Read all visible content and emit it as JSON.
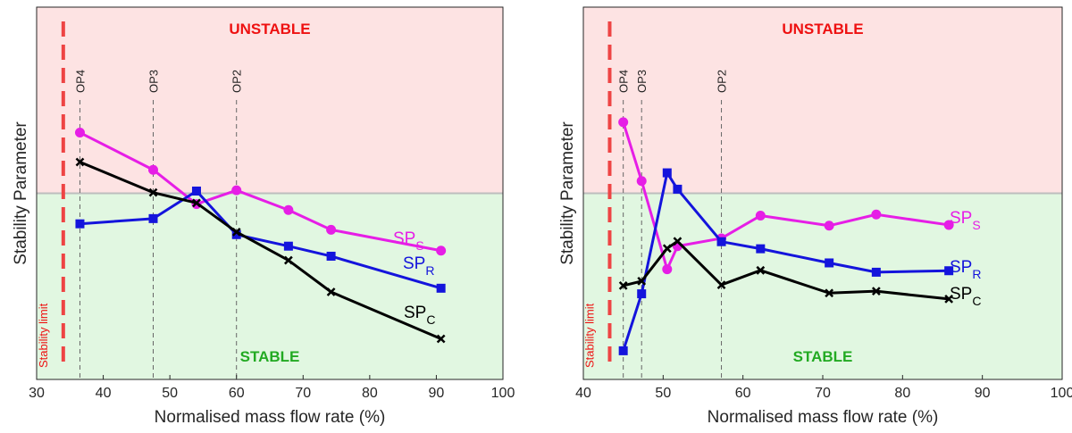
{
  "chart_data": [
    {
      "type": "line",
      "xlabel": "Normalised mass flow rate (%)",
      "ylabel": "Stability Parameter",
      "xlim": [
        30,
        100
      ],
      "ylim": [
        0,
        1
      ],
      "xticks": [
        30,
        40,
        50,
        60,
        70,
        80,
        90,
        100
      ],
      "stability_boundary": 0.5,
      "grid": false,
      "region_labels": {
        "unstable": "UNSTABLE",
        "stable": "STABLE"
      },
      "stability_limit": {
        "x": 34,
        "label": "Stability limit"
      },
      "operating_points": [
        {
          "label": "OP4",
          "x": 36.5
        },
        {
          "label": "OP3",
          "x": 47.5
        },
        {
          "label": "OP2",
          "x": 60
        }
      ],
      "series": [
        {
          "name": "SP_S",
          "label": "SP",
          "sub": "S",
          "color": "#e61ee6",
          "marker": "circle",
          "x": [
            36.5,
            47.5,
            54,
            60,
            67.8,
            74.2,
            90.7
          ],
          "values": [
            0.663,
            0.563,
            0.471,
            0.508,
            0.455,
            0.402,
            0.346
          ]
        },
        {
          "name": "SP_R",
          "label": "SP",
          "sub": "R",
          "color": "#1414dc",
          "marker": "square",
          "x": [
            36.5,
            47.5,
            54,
            60,
            67.8,
            74.2,
            90.7
          ],
          "values": [
            0.418,
            0.432,
            0.506,
            0.389,
            0.358,
            0.331,
            0.245
          ]
        },
        {
          "name": "SP_C",
          "label": "SP",
          "sub": "C",
          "color": "#000000",
          "marker": "x",
          "x": [
            36.5,
            47.5,
            54,
            60,
            67.8,
            74.2,
            90.7
          ],
          "values": [
            0.584,
            0.502,
            0.474,
            0.396,
            0.32,
            0.235,
            0.109
          ]
        }
      ]
    },
    {
      "type": "line",
      "xlabel": "Normalised mass flow rate (%)",
      "ylabel": "Stability Parameter",
      "xlim": [
        40,
        100
      ],
      "ylim": [
        0,
        1
      ],
      "xticks": [
        40,
        50,
        60,
        70,
        80,
        90,
        100
      ],
      "stability_boundary": 0.5,
      "grid": false,
      "region_labels": {
        "unstable": "UNSTABLE",
        "stable": "STABLE"
      },
      "stability_limit": {
        "x": 43.3,
        "label": "Stability limit"
      },
      "operating_points": [
        {
          "label": "OP4",
          "x": 45
        },
        {
          "label": "OP3",
          "x": 47.3
        },
        {
          "label": "OP2",
          "x": 57.3
        }
      ],
      "series": [
        {
          "name": "SP_S",
          "label": "SP",
          "sub": "S",
          "color": "#e61ee6",
          "marker": "circle",
          "x": [
            45,
            47.3,
            50.5,
            51.8,
            57.3,
            62.2,
            70.8,
            76.7,
            85.8
          ],
          "values": [
            0.691,
            0.533,
            0.296,
            0.358,
            0.379,
            0.44,
            0.413,
            0.443,
            0.415
          ]
        },
        {
          "name": "SP_R",
          "label": "SP",
          "sub": "R",
          "color": "#1414dc",
          "marker": "square",
          "x": [
            45,
            47.3,
            50.5,
            51.8,
            57.3,
            62.2,
            70.8,
            76.7,
            85.8
          ],
          "values": [
            0.077,
            0.23,
            0.555,
            0.511,
            0.37,
            0.351,
            0.313,
            0.288,
            0.292
          ]
        },
        {
          "name": "SP_C",
          "label": "SP",
          "sub": "C",
          "color": "#000000",
          "marker": "x",
          "x": [
            45,
            47.3,
            50.5,
            51.8,
            57.3,
            62.2,
            70.8,
            76.7,
            85.8
          ],
          "values": [
            0.252,
            0.264,
            0.352,
            0.371,
            0.254,
            0.293,
            0.232,
            0.237,
            0.216
          ]
        }
      ]
    }
  ]
}
